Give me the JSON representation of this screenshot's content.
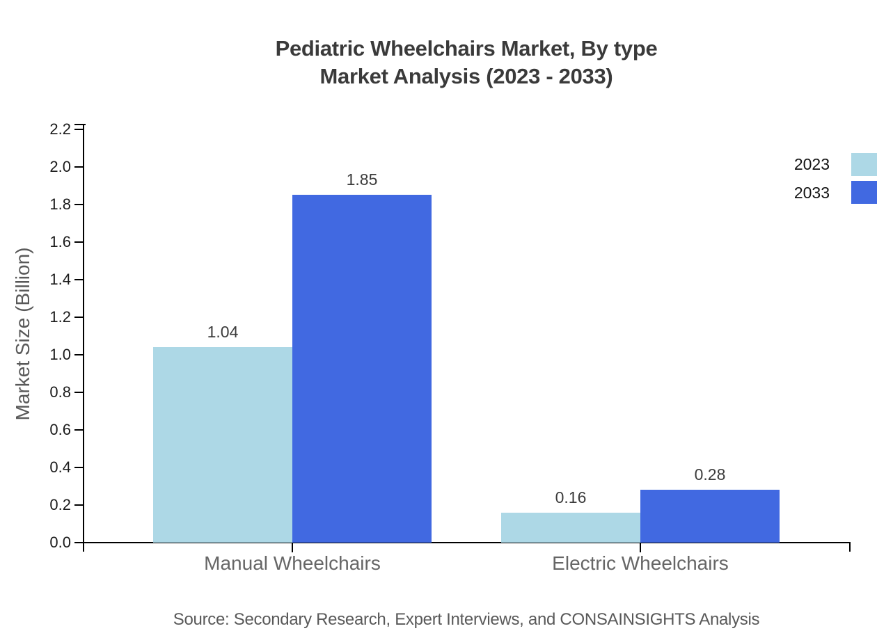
{
  "chart_data": {
    "type": "bar",
    "title_lines": [
      "Pediatric Wheelchairs Market, By type",
      "Market Analysis (2023 - 2033)"
    ],
    "categories": [
      "Manual Wheelchairs",
      "Electric Wheelchairs"
    ],
    "series": [
      {
        "name": "2023",
        "color": "#ADD8E6",
        "values": [
          1.04,
          0.16
        ]
      },
      {
        "name": "2033",
        "color": "#4169E1",
        "values": [
          1.85,
          0.28
        ]
      }
    ],
    "value_labels": [
      [
        "1.04",
        "0.16"
      ],
      [
        "1.85",
        "0.28"
      ]
    ],
    "xlabel": "",
    "ylabel": "Market Size (Billion)",
    "ylim": [
      0,
      2.2
    ],
    "y_ticks": [
      0.0,
      0.2,
      0.4,
      0.6,
      0.8,
      1.0,
      1.2,
      1.4,
      1.6,
      1.8,
      2.0,
      2.2
    ],
    "grid": false,
    "legend_position": "top-right",
    "axis_color": "#000000"
  },
  "source_note": "Source: Secondary Research, Expert Interviews, and CONSAINSIGHTS Analysis"
}
